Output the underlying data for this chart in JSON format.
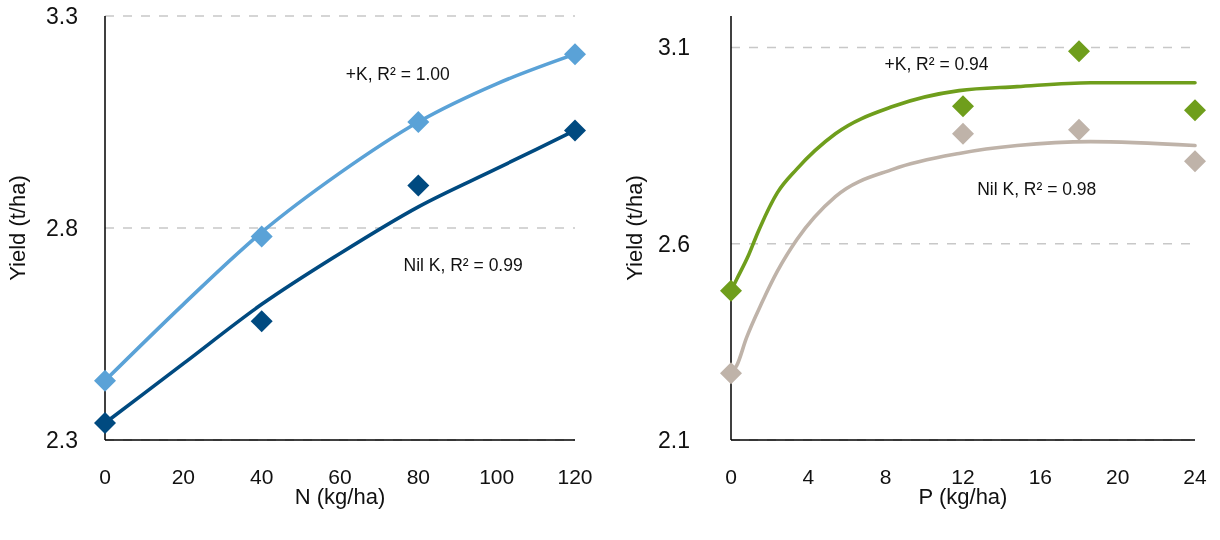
{
  "chart_data": [
    {
      "type": "scatter",
      "xlabel": "N (kg/ha)",
      "ylabel": "Yield (t/ha)",
      "xlim": [
        0,
        120
      ],
      "xticks": [
        0,
        20,
        40,
        60,
        80,
        100,
        120
      ],
      "ylim": [
        2.3,
        3.3
      ],
      "yticks": [
        2.3,
        2.8,
        3.3
      ],
      "grid": "y",
      "marker": "diamond",
      "series": [
        {
          "type": "line",
          "marker": "none",
          "color": "#5aa2d7",
          "x": [
            0,
            20,
            40,
            60,
            80,
            100,
            120
          ],
          "values": [
            2.44,
            2.62,
            2.79,
            2.93,
            3.05,
            3.14,
            3.21
          ]
        },
        {
          "type": "line",
          "marker": "none",
          "color": "#004a80",
          "x": [
            0,
            20,
            40,
            60,
            80,
            100,
            120
          ],
          "values": [
            2.34,
            2.48,
            2.62,
            2.74,
            2.85,
            2.94,
            3.03
          ]
        },
        {
          "color": "#5aa2d7",
          "x": [
            0,
            40,
            80,
            120
          ],
          "values": [
            2.44,
            2.78,
            3.05,
            3.21
          ]
        },
        {
          "color": "#004a80",
          "x": [
            0,
            40,
            80,
            120
          ],
          "values": [
            2.34,
            2.58,
            2.9,
            3.03
          ]
        }
      ],
      "annotations": [
        "+K, R² = 1.00",
        "Nil K, R² = 0.99"
      ]
    },
    {
      "type": "scatter",
      "xlabel": "P (kg/ha)",
      "ylabel": "Yield (t/ha)",
      "xlim": [
        0,
        24
      ],
      "xticks": [
        0,
        4,
        8,
        12,
        16,
        20,
        24
      ],
      "ylim": [
        2.1,
        3.18
      ],
      "yticks": [
        2.1,
        2.6,
        3.1
      ],
      "grid": "y",
      "marker": "diamond",
      "series": [
        {
          "type": "line",
          "marker": "none",
          "color": "#6f9e1c",
          "x": [
            0,
            0.3,
            0.9,
            1.4,
            2.4,
            3.4,
            5.4,
            8.4,
            11.8,
            14.8,
            18.6,
            21.2,
            24
          ],
          "values": [
            2.48,
            2.51,
            2.57,
            2.63,
            2.73,
            2.79,
            2.88,
            2.95,
            2.99,
            3.0,
            3.01,
            3.01,
            3.01
          ]
        },
        {
          "type": "line",
          "marker": "none",
          "color": "#bfb3a9",
          "x": [
            0,
            0.3,
            0.8,
            1.6,
            2.4,
            3.4,
            5.4,
            8.4,
            11.8,
            14.8,
            18.6,
            24
          ],
          "values": [
            2.27,
            2.29,
            2.36,
            2.45,
            2.53,
            2.61,
            2.72,
            2.79,
            2.83,
            2.85,
            2.86,
            2.85
          ]
        },
        {
          "color": "#6f9e1c",
          "x": [
            0,
            12,
            18,
            24
          ],
          "values": [
            2.48,
            2.95,
            3.09,
            2.94
          ]
        },
        {
          "color": "#bfb3a9",
          "x": [
            0,
            12,
            18,
            24
          ],
          "values": [
            2.27,
            2.88,
            2.89,
            2.81
          ]
        }
      ],
      "annotations": [
        "+K, R² = 0.94",
        "Nil K, R² = 0.98"
      ]
    }
  ]
}
